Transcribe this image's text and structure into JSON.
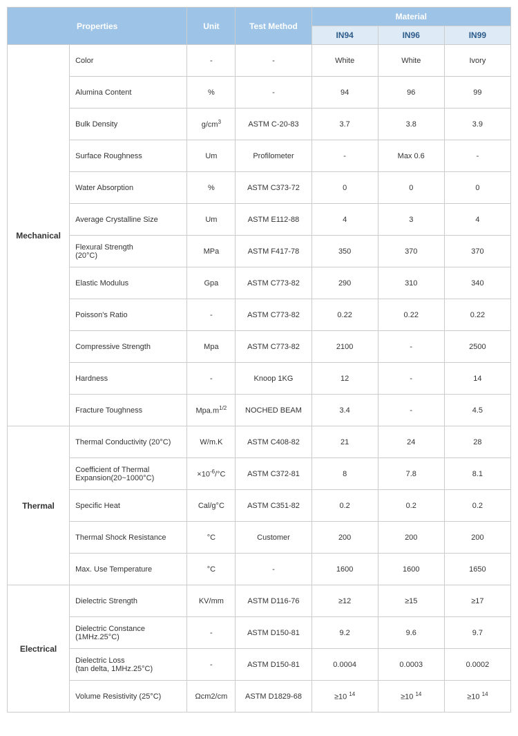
{
  "headers": {
    "properties": "Properties",
    "unit": "Unit",
    "testMethod": "Test Method",
    "material": "Material",
    "mat1": "IN94",
    "mat2": "IN96",
    "mat3": "IN99"
  },
  "categories": [
    {
      "name": "Mechanical",
      "rowspan": 12
    },
    {
      "name": "Thermal",
      "rowspan": 5
    },
    {
      "name": "Electrical",
      "rowspan": 4
    }
  ],
  "rows": [
    {
      "cat": 0,
      "prop": "Color",
      "unit": "-",
      "test": "-",
      "v": [
        "White",
        "White",
        "Ivory"
      ]
    },
    {
      "cat": 0,
      "prop": "Alumina Content",
      "unit": "%",
      "test": "-",
      "v": [
        "94",
        "96",
        "99"
      ]
    },
    {
      "cat": 0,
      "prop": "Bulk Density",
      "unit_html": "g/cm<sup>3</sup>",
      "test": "ASTM C-20-83",
      "v": [
        "3.7",
        "3.8",
        "3.9"
      ]
    },
    {
      "cat": 0,
      "prop": "Surface Roughness",
      "unit": "Um",
      "test": "Profilometer",
      "v": [
        "-",
        "Max 0.6",
        "-"
      ]
    },
    {
      "cat": 0,
      "prop": "Water Absorption",
      "unit": "%",
      "test": "ASTM C373-72",
      "v": [
        "0",
        "0",
        "0"
      ]
    },
    {
      "cat": 0,
      "prop": "Average Crystalline Size",
      "unit": "Um",
      "test": "ASTM E112-88",
      "v": [
        "4",
        "3",
        "4"
      ]
    },
    {
      "cat": 0,
      "prop_html": "Flexural Strength<br>(20°C)",
      "unit": "MPa",
      "test": "ASTM F417-78",
      "v": [
        "350",
        "370",
        "370"
      ]
    },
    {
      "cat": 0,
      "prop": "Elastic Modulus",
      "unit": "Gpa",
      "test": "ASTM C773-82",
      "v": [
        "290",
        "310",
        "340"
      ]
    },
    {
      "cat": 0,
      "prop": "Poisson's Ratio",
      "unit": "-",
      "test": "ASTM C773-82",
      "v": [
        "0.22",
        "0.22",
        "0.22"
      ]
    },
    {
      "cat": 0,
      "prop": "Compressive Strength",
      "unit": "Mpa",
      "test": "ASTM C773-82",
      "v": [
        "2100",
        "-",
        "2500"
      ]
    },
    {
      "cat": 0,
      "prop": "Hardness",
      "unit": "-",
      "test": "Knoop 1KG",
      "v": [
        "12",
        "-",
        "14"
      ]
    },
    {
      "cat": 0,
      "prop": "Fracture Toughness",
      "unit_html": "Mpa.m<sup>1/2</sup>",
      "test": "NOCHED BEAM",
      "v": [
        "3.4",
        "-",
        "4.5"
      ]
    },
    {
      "cat": 1,
      "prop": "Thermal Conductivity (20°C)",
      "unit": "W/m.K",
      "test": "ASTM C408-82",
      "v": [
        "21",
        "24",
        "28"
      ]
    },
    {
      "cat": 1,
      "prop_html": "Coefficient of Thermal<br>Expansion(20~1000°C)",
      "unit_html": "×10<sup>-6</sup>/°C",
      "test": "ASTM C372-81",
      "v": [
        "8",
        "7.8",
        "8.1"
      ]
    },
    {
      "cat": 1,
      "prop": "Specific Heat",
      "unit": "Cal/g°C",
      "test": "ASTM C351-82",
      "v": [
        "0.2",
        "0.2",
        "0.2"
      ]
    },
    {
      "cat": 1,
      "prop": "Thermal Shock Resistance",
      "unit": "°C",
      "test": "Customer",
      "v": [
        "200",
        "200",
        "200"
      ]
    },
    {
      "cat": 1,
      "prop": "Max. Use Temperature",
      "unit": "°C",
      "test": "-",
      "v": [
        "1600",
        "1600",
        "1650"
      ]
    },
    {
      "cat": 2,
      "prop": "Dielectric Strength",
      "unit": "KV/mm",
      "test": "ASTM D116-76",
      "v": [
        "≥12",
        "≥15",
        "≥17"
      ]
    },
    {
      "cat": 2,
      "prop_html": "Dielectric Constance<br>(1MHz.25°C)",
      "unit": "-",
      "test": "ASTM D150-81",
      "v": [
        "9.2",
        "9.6",
        "9.7"
      ]
    },
    {
      "cat": 2,
      "prop_html": "Dielectric Loss<br>(tan delta, 1MHz.25°C)",
      "unit": "-",
      "test": "ASTM D150-81",
      "v": [
        "0.0004",
        "0.0003",
        "0.0002"
      ]
    },
    {
      "cat": 2,
      "prop": "Volume Resistivity (25°C)",
      "unit": "Ωcm2/cm",
      "test": "ASTM D1829-68",
      "v_html": [
        "≥10 <sup>14</sup>",
        "≥10 <sup>14</sup>",
        "≥10 <sup>14</sup>"
      ]
    }
  ]
}
